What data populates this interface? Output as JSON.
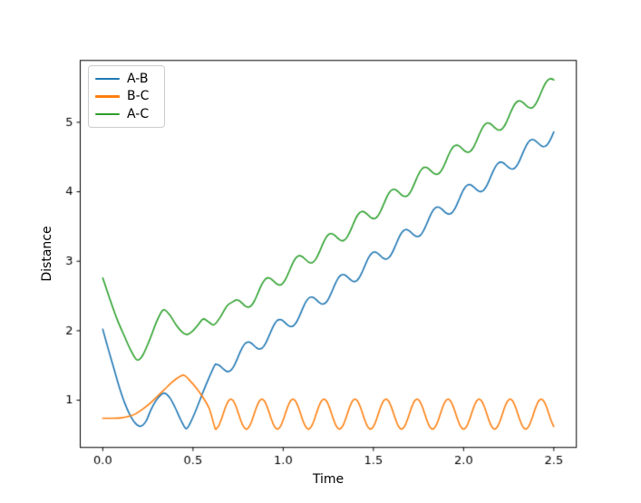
{
  "figure": {
    "background": "#ffffff"
  },
  "chart_data": {
    "type": "line",
    "title": "",
    "xlabel": "Time",
    "ylabel": "Distance",
    "xlim": [
      -0.125,
      2.625
    ],
    "ylim": [
      0.32,
      5.89
    ],
    "grid": false,
    "axis_color": "#000000",
    "tick_label_color": "#000000",
    "xticks": {
      "values": [
        0.0,
        0.5,
        1.0,
        1.5,
        2.0,
        2.5
      ],
      "labels": [
        "0.0",
        "0.5",
        "1.0",
        "1.5",
        "2.0",
        "2.5"
      ]
    },
    "yticks": {
      "values": [
        1,
        2,
        3,
        4,
        5
      ],
      "labels": [
        "1",
        "2",
        "3",
        "4",
        "5"
      ]
    },
    "legend": {
      "position": "upper left",
      "entries": [
        "A-B",
        "B-C",
        "A-C"
      ]
    },
    "series": [
      {
        "name": "A-B",
        "color": "#1f77b4",
        "keypoints": [
          [
            0,
            2.02
          ],
          [
            0.03,
            1.74
          ],
          [
            0.06,
            1.47
          ],
          [
            0.09,
            1.2
          ],
          [
            0.12,
            0.97
          ],
          [
            0.15,
            0.79
          ],
          [
            0.18,
            0.67
          ],
          [
            0.21,
            0.625
          ],
          [
            0.24,
            0.7
          ],
          [
            0.27,
            0.88
          ],
          [
            0.305,
            1.03
          ],
          [
            0.34,
            1.1
          ],
          [
            0.37,
            1.04
          ],
          [
            0.4,
            0.9
          ],
          [
            0.43,
            0.73
          ],
          [
            0.462,
            0.59
          ],
          [
            0.49,
            0.7
          ],
          [
            0.52,
            0.88
          ],
          [
            0.55,
            1.08
          ],
          [
            0.58,
            1.27
          ],
          [
            0.62,
            1.5
          ]
        ],
        "osc": {
          "t0": 0.62,
          "t1": 2.5,
          "a": 0.237,
          "b": 1.85,
          "amp": 0.12,
          "period": 0.175,
          "phase": 0.969
        },
        "description": "starts at 2.02, dips to 0.63 at t=0.21, local max 1.10 at t=0.34, min 0.59 at t=0.46, then rises ~linearly with small oscillations to ~4.9 at t=2.5"
      },
      {
        "name": "B-C",
        "color": "#ff7f0e",
        "keypoints": [
          [
            0,
            0.74
          ],
          [
            0.05,
            0.74
          ],
          [
            0.1,
            0.745
          ],
          [
            0.14,
            0.765
          ],
          [
            0.18,
            0.8
          ],
          [
            0.22,
            0.87
          ],
          [
            0.26,
            0.95
          ],
          [
            0.3,
            1.05
          ],
          [
            0.34,
            1.15
          ],
          [
            0.38,
            1.25
          ],
          [
            0.42,
            1.33
          ],
          [
            0.45,
            1.36
          ],
          [
            0.48,
            1.29
          ],
          [
            0.52,
            1.17
          ],
          [
            0.56,
            1.02
          ],
          [
            0.59,
            0.88
          ],
          [
            0.615,
            0.66
          ],
          [
            0.624,
            0.585
          ]
        ],
        "osc": {
          "t0": 0.624,
          "t1": 2.5,
          "a": 0.8,
          "b": 0,
          "amp": 0.215,
          "period": 0.172,
          "phase": 0.71
        },
        "description": "flat near 0.74, rises to peak 1.36 at t=0.45, falls to 0.585, then steady oscillation between ~0.585 and ~1.015 until t=2.5"
      },
      {
        "name": "A-C",
        "color": "#2ca02c",
        "keypoints": [
          [
            0,
            2.76
          ],
          [
            0.04,
            2.45
          ],
          [
            0.08,
            2.16
          ],
          [
            0.12,
            1.92
          ],
          [
            0.155,
            1.72
          ],
          [
            0.19,
            1.58
          ],
          [
            0.22,
            1.64
          ],
          [
            0.26,
            1.87
          ],
          [
            0.3,
            2.14
          ],
          [
            0.335,
            2.3
          ],
          [
            0.37,
            2.23
          ],
          [
            0.41,
            2.07
          ],
          [
            0.44,
            1.98
          ],
          [
            0.467,
            1.945
          ],
          [
            0.5,
            2.0
          ],
          [
            0.53,
            2.09
          ],
          [
            0.557,
            2.17
          ],
          [
            0.59,
            2.12
          ],
          [
            0.617,
            2.085
          ],
          [
            0.65,
            2.19
          ],
          [
            0.69,
            2.36
          ],
          [
            0.73,
            2.43
          ]
        ],
        "osc": {
          "t0": 0.73,
          "t1": 2.5,
          "a": 0.974,
          "b": 1.83,
          "amp": 0.12,
          "period": 0.174,
          "phase": 0.905
        },
        "description": "starts at 2.76, dips to 1.58 at t=0.19, local max 2.30 at t=0.335, then rises ~linearly with small oscillations to ~5.6 at t=2.5"
      }
    ]
  }
}
